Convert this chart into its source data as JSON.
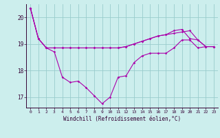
{
  "xlabel": "Windchill (Refroidissement éolien,°C)",
  "background_color": "#cceeed",
  "line_color": "#aa00aa",
  "grid_color": "#99cccc",
  "xlim": [
    -0.5,
    23.5
  ],
  "ylim": [
    16.6,
    20.5
  ],
  "yticks": [
    17,
    18,
    19,
    20
  ],
  "xticks": [
    0,
    1,
    2,
    3,
    4,
    5,
    6,
    7,
    8,
    9,
    10,
    11,
    12,
    13,
    14,
    15,
    16,
    17,
    18,
    19,
    20,
    21,
    22,
    23
  ],
  "series1": [
    20.35,
    19.2,
    18.85,
    18.85,
    18.85,
    18.85,
    18.85,
    18.85,
    18.85,
    18.85,
    18.85,
    18.85,
    18.9,
    19.0,
    19.1,
    19.2,
    19.3,
    19.35,
    19.4,
    19.45,
    19.5,
    19.15,
    18.9,
    18.9
  ],
  "series2": [
    20.35,
    19.2,
    18.85,
    18.7,
    17.75,
    17.55,
    17.6,
    17.35,
    17.05,
    16.75,
    17.0,
    17.75,
    17.8,
    18.3,
    18.55,
    18.65,
    18.65,
    18.65,
    18.85,
    19.15,
    19.15,
    18.85,
    18.9,
    18.9
  ],
  "series3": [
    20.35,
    19.2,
    18.85,
    18.85,
    18.85,
    18.85,
    18.85,
    18.85,
    18.85,
    18.85,
    18.85,
    18.85,
    18.9,
    19.0,
    19.1,
    19.2,
    19.3,
    19.35,
    19.5,
    19.55,
    19.2,
    19.15,
    18.9,
    18.9
  ]
}
